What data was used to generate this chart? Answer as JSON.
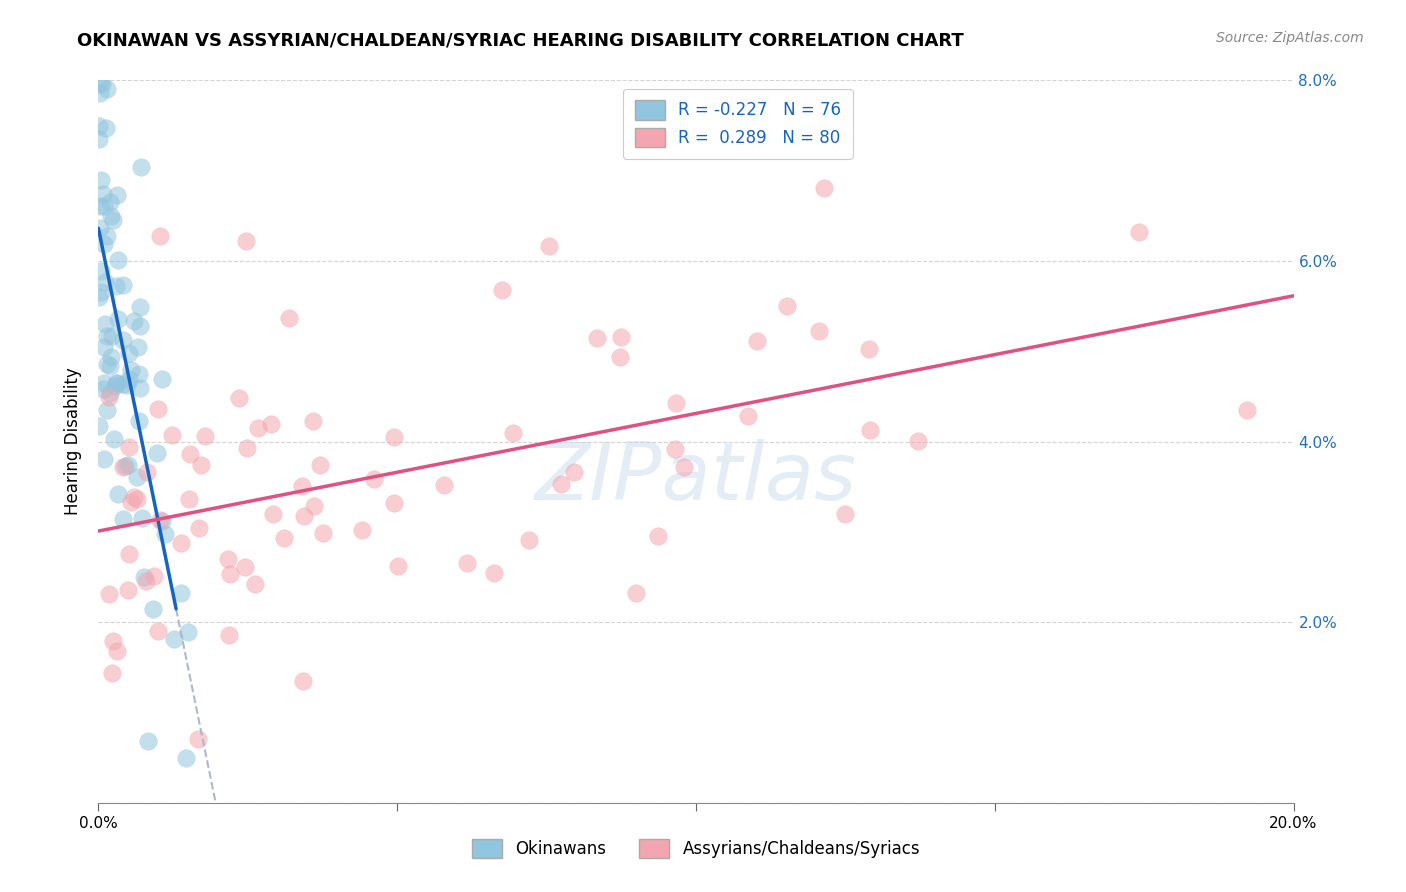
{
  "title": "OKINAWAN VS ASSYRIAN/CHALDEAN/SYRIAC HEARING DISABILITY CORRELATION CHART",
  "source": "Source: ZipAtlas.com",
  "ylabel": "Hearing Disability",
  "legend_label1": "Okinawans",
  "legend_label2": "Assyrians/Chaldeans/Syriacs",
  "r1": -0.227,
  "n1": 76,
  "r2": 0.289,
  "n2": 80,
  "color1": "#92c5de",
  "color2": "#f4a6b0",
  "line_color1": "#1565c0",
  "line_color2": "#e05080",
  "dash_color": "#b0b8c8",
  "watermark": "ZIPatlas",
  "xlim": [
    0.0,
    0.2
  ],
  "ylim": [
    0.0,
    0.08
  ],
  "xticks": [
    0.0,
    0.05,
    0.1,
    0.15,
    0.2
  ],
  "xtick_labels": [
    "0.0%",
    "",
    "",
    "",
    "20.0%"
  ],
  "yticks": [
    0.0,
    0.02,
    0.04,
    0.06,
    0.08
  ],
  "ytick_labels": [
    "",
    "2.0%",
    "4.0%",
    "6.0%",
    "8.0%"
  ],
  "background_color": "#ffffff",
  "grid_color": "#d0d0d0",
  "title_fontsize": 13,
  "source_fontsize": 10,
  "tick_fontsize": 11,
  "ylabel_fontsize": 12
}
